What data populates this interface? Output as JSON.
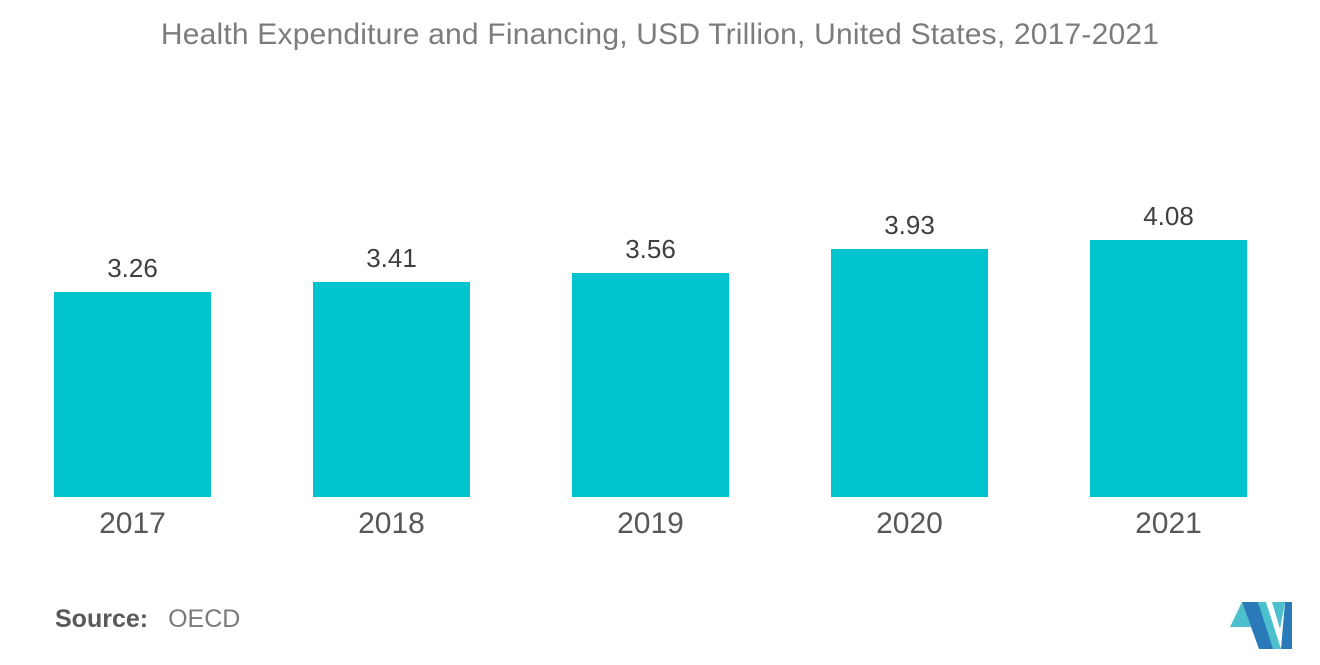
{
  "chart_data": {
    "type": "bar",
    "title": "Health Expenditure and Financing, USD Trillion, United States, 2017-2021",
    "categories": [
      "2017",
      "2018",
      "2019",
      "2020",
      "2021"
    ],
    "values": [
      3.26,
      3.41,
      3.56,
      3.93,
      4.08
    ],
    "value_labels": [
      "3.26",
      "3.41",
      "3.56",
      "3.93",
      "4.08"
    ],
    "xlabel": "",
    "ylabel": "",
    "ylim": [
      0,
      4.3
    ],
    "grid": false,
    "legend": false,
    "axes_visible": false,
    "data_label_position": "above-bar",
    "bar_color": "#00C4CD"
  },
  "source": {
    "label": "Source:",
    "value": "OECD"
  },
  "logo": {
    "name": "mordor-intelligence-logo",
    "blue": "#2A79B8",
    "teal": "#4CC0CD"
  },
  "colors": {
    "background": "#FFFFFF",
    "title_text": "#7C7C7C",
    "value_label_text": "#3F3F3F",
    "x_tick_text": "#575757",
    "source_label_text": "#595959",
    "source_value_text": "#7A7A7A"
  }
}
